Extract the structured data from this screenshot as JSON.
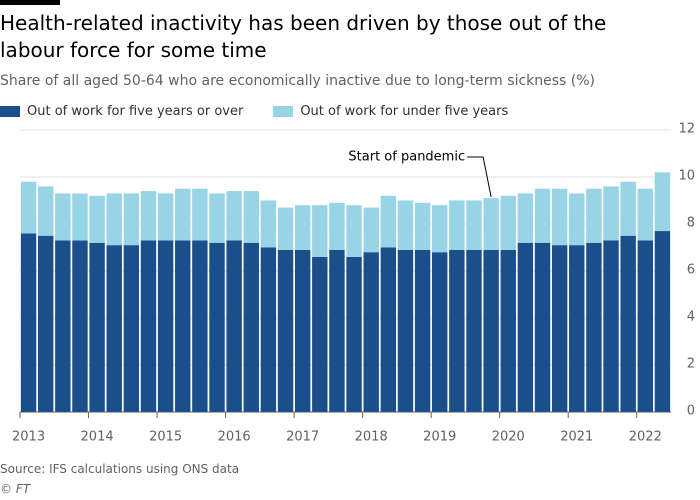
{
  "chart_data": {
    "type": "stacked_bar",
    "title": "Health-related inactivity has been driven by those out of the labour force for some time",
    "subtitle": "Share of all aged 50-64 who are economically inactive due to long-term sickness (%)",
    "source": "Source: IFS calculations using ONS data",
    "credit": "© FT",
    "annotation": "Start of pandemic",
    "categories": [
      "2013",
      null,
      null,
      null,
      "2014",
      null,
      null,
      null,
      "2015",
      null,
      null,
      null,
      "2016",
      null,
      null,
      null,
      "2017",
      null,
      null,
      null,
      "2018",
      null,
      null,
      null,
      "2019",
      null,
      null,
      null,
      "2020",
      null,
      null,
      null,
      "2021",
      null,
      null,
      null,
      "2022",
      null
    ],
    "series": [
      {
        "name": "Out of work for five years or over",
        "color": "#1a4f8b",
        "values": [
          7.6,
          7.5,
          7.3,
          7.3,
          7.2,
          7.1,
          7.1,
          7.3,
          7.3,
          7.3,
          7.3,
          7.2,
          7.3,
          7.2,
          7.0,
          6.9,
          6.9,
          6.6,
          6.9,
          6.6,
          6.8,
          7.0,
          6.9,
          6.9,
          6.8,
          6.9,
          6.9,
          6.9,
          6.9,
          7.2,
          7.2,
          7.1,
          7.1,
          7.2,
          7.3,
          7.5,
          7.3,
          7.7
        ]
      },
      {
        "name": "Out of work for under five years",
        "color": "#96d4e6",
        "values": [
          2.2,
          2.1,
          2.0,
          2.0,
          2.0,
          2.2,
          2.2,
          2.1,
          2.0,
          2.2,
          2.2,
          2.1,
          2.1,
          2.2,
          2.0,
          1.8,
          1.9,
          2.2,
          2.0,
          2.2,
          1.9,
          2.2,
          2.1,
          2.0,
          2.0,
          2.1,
          2.1,
          2.2,
          2.3,
          2.1,
          2.3,
          2.4,
          2.2,
          2.3,
          2.3,
          2.3,
          2.2,
          2.5
        ]
      }
    ],
    "ylim": [
      0,
      12
    ],
    "yticks": [
      0,
      2,
      4,
      6,
      8,
      10,
      12
    ],
    "grid": true
  }
}
